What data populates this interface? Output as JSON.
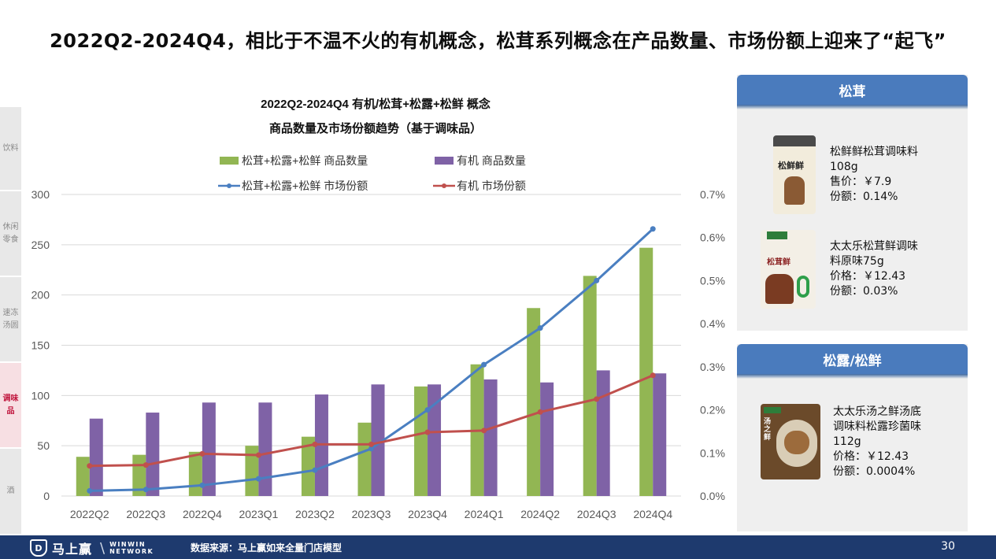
{
  "page_title": "2022Q2-2024Q4，相比于不温不火的有机概念，松茸系列概念在产品数量、市场份额上迎来了“起飞”",
  "side_nav": [
    {
      "label": "饮料",
      "active": false
    },
    {
      "label": "休闲零食",
      "active": false
    },
    {
      "label": "速冻汤圆",
      "active": false
    },
    {
      "label": "调味品",
      "active": true
    },
    {
      "label": "酒",
      "active": false
    }
  ],
  "chart_data": {
    "type": "bar",
    "title": "2022Q2-2024Q4 有机/松茸+松露+松鲜 概念",
    "subtitle": "商品数量及市场份额趋势（基于调味品）",
    "categories": [
      "2022Q2",
      "2022Q3",
      "2022Q4",
      "2023Q1",
      "2023Q2",
      "2023Q3",
      "2023Q4",
      "2024Q1",
      "2024Q2",
      "2024Q3",
      "2024Q4"
    ],
    "series": [
      {
        "name": "松茸+松露+松鲜 商品数量",
        "kind": "bar",
        "axis": "left",
        "color": "#92b653",
        "values": [
          39,
          41,
          44,
          50,
          59,
          73,
          109,
          131,
          187,
          219,
          247
        ]
      },
      {
        "name": "有机 商品数量",
        "kind": "bar",
        "axis": "left",
        "color": "#7f62a6",
        "values": [
          77,
          83,
          93,
          93,
          101,
          111,
          111,
          116,
          113,
          125,
          122
        ]
      },
      {
        "name": "松茸+松露+松鲜 市场份额",
        "kind": "line",
        "axis": "right",
        "color": "#4a7fc1",
        "values": [
          0.012,
          0.015,
          0.025,
          0.04,
          0.06,
          0.11,
          0.2,
          0.305,
          0.39,
          0.5,
          0.62
        ]
      },
      {
        "name": "有机 市场份额",
        "kind": "line",
        "axis": "right",
        "color": "#c0504d",
        "values": [
          0.07,
          0.072,
          0.098,
          0.095,
          0.12,
          0.12,
          0.148,
          0.152,
          0.195,
          0.225,
          0.28
        ]
      }
    ],
    "ylim_left": [
      0,
      300
    ],
    "yticks_left": [
      "0",
      "50",
      "100",
      "150",
      "200",
      "250",
      "300"
    ],
    "ylim_right": [
      0,
      0.7
    ],
    "yticks_right": [
      "0.0%",
      "0.1%",
      "0.2%",
      "0.3%",
      "0.4%",
      "0.5%",
      "0.6%",
      "0.7%"
    ],
    "grid": true,
    "legend_position": "top"
  },
  "panels": [
    {
      "title": "松茸",
      "products": [
        {
          "image": "松鲜鲜",
          "image_icon": "seasoning-jar-image",
          "lines": [
            "松鲜鲜松茸调味料",
            "108g",
            "售价：￥7.9",
            "份额：0.14%"
          ]
        },
        {
          "image": "松茸鲜",
          "image_icon": "seasoning-pouch-image",
          "lines": [
            "太太乐松茸鲜调味",
            "料原味75g",
            "价格：￥12.43",
            "份额：0.03%"
          ]
        }
      ]
    },
    {
      "title": "松露/松鲜",
      "products": [
        {
          "image": "汤之鲜",
          "image_icon": "soup-base-pack-image",
          "lines": [
            "太太乐汤之鲜汤底",
            "调味料松露珍菌味",
            "112g",
            "价格：￥12.43",
            "份额：0.0004%"
          ]
        }
      ]
    }
  ],
  "footer": {
    "logo_text": "马上赢",
    "logo_en_1": "WINWIN",
    "logo_en_2": "NETWORK",
    "source": "数据来源：马上赢如来全量门店模型",
    "page_number": "30"
  }
}
